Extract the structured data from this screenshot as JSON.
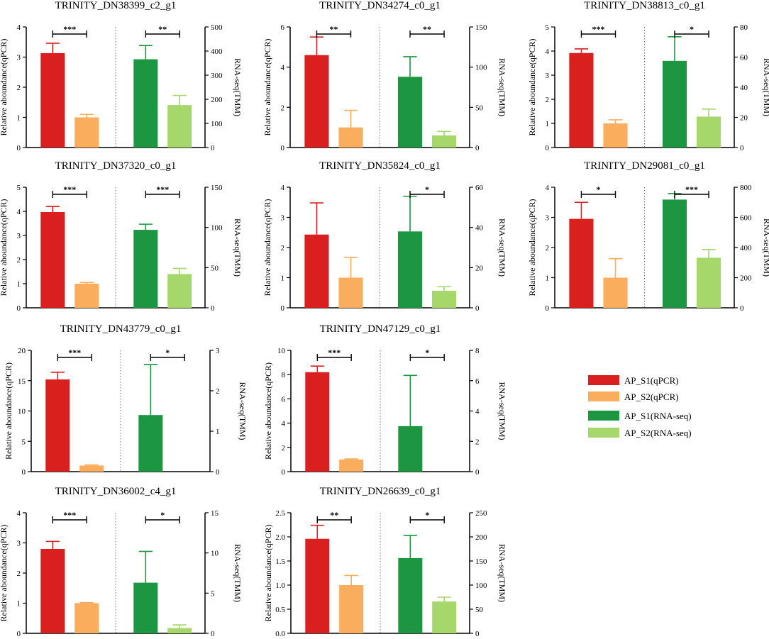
{
  "figure_title": "",
  "colors": {
    "AP_S1_qPCR": "#D9201F",
    "AP_S2_qPCR": "#FBAD5E",
    "AP_S1_RNAseq": "#1C9640",
    "AP_S2_RNAseq": "#A6D76A"
  },
  "legend": {
    "items": [
      {
        "label": "AP_S1(qPCR)",
        "color_key": "AP_S1_qPCR"
      },
      {
        "label": "AP_S2(qPCR)",
        "color_key": "AP_S2_qPCR"
      },
      {
        "label": "AP_S1(RNA-seq)",
        "color_key": "AP_S1_RNAseq"
      },
      {
        "label": "AP_S2(RNA-seq)",
        "color_key": "AP_S2_RNAseq"
      }
    ]
  },
  "chart_data": [
    {
      "type": "bar",
      "title": "TRINITY_DN38399_c2_g1",
      "ylabel_left": "Relative aboundance(qPCR)",
      "ylabel_right": "RNA-seq(TMM)",
      "categories": [
        "AP_S1(qPCR)",
        "AP_S2(qPCR)",
        "AP_S1(RNA-seq)",
        "AP_S2(RNA-seq)"
      ],
      "left_axis": {
        "ylim": [
          0,
          4
        ],
        "ticks": [
          "0",
          "1",
          "2",
          "3",
          "4"
        ]
      },
      "right_axis": {
        "ylim": [
          0,
          500
        ],
        "ticks": [
          "0",
          "100",
          "200",
          "300",
          "400",
          "500"
        ]
      },
      "qpcr": {
        "values": [
          3.13,
          1.0
        ],
        "errors": [
          0.33,
          0.1
        ],
        "significance": "***"
      },
      "rnaseq": {
        "values": [
          366,
          176
        ],
        "errors": [
          57,
          40
        ],
        "significance": "**"
      }
    },
    {
      "type": "bar",
      "title": "TRINITY_DN34274_c0_g1",
      "ylabel_left": "Relative aboundance(qPCR)",
      "ylabel_right": "RNA-seq(TMM)",
      "categories": [
        "AP_S1(qPCR)",
        "AP_S2(qPCR)",
        "AP_S1(RNA-seq)",
        "AP_S2(RNA-seq)"
      ],
      "left_axis": {
        "ylim": [
          0,
          6
        ],
        "ticks": [
          "0",
          "2",
          "4",
          "6"
        ]
      },
      "right_axis": {
        "ylim": [
          0,
          150
        ],
        "ticks": [
          "0",
          "50",
          "100",
          "150"
        ]
      },
      "qpcr": {
        "values": [
          4.6,
          1.0
        ],
        "errors": [
          0.9,
          0.85
        ],
        "significance": "**"
      },
      "rnaseq": {
        "values": [
          88,
          15
        ],
        "errors": [
          25,
          5
        ],
        "significance": "**"
      }
    },
    {
      "type": "bar",
      "title": "TRINITY_DN38813_c0_g1",
      "ylabel_left": "Relative aboundance(qPCR)",
      "ylabel_right": "RNA-seq(TMM)",
      "categories": [
        "AP_S1(qPCR)",
        "AP_S2(qPCR)",
        "AP_S1(RNA-seq)",
        "AP_S2(RNA-seq)"
      ],
      "left_axis": {
        "ylim": [
          0,
          5
        ],
        "ticks": [
          "0",
          "1",
          "2",
          "3",
          "4",
          "5"
        ]
      },
      "right_axis": {
        "ylim": [
          0,
          80
        ],
        "ticks": [
          "0",
          "20",
          "40",
          "60",
          "80"
        ]
      },
      "qpcr": {
        "values": [
          3.92,
          1.0
        ],
        "errors": [
          0.17,
          0.15
        ],
        "significance": "***"
      },
      "rnaseq": {
        "values": [
          57.5,
          20.5
        ],
        "errors": [
          16,
          5
        ],
        "significance": "*"
      }
    },
    {
      "type": "bar",
      "title": "TRINITY_DN37320_c0_g1",
      "ylabel_left": "Relative aboundance(qPCR)",
      "ylabel_right": "RNA-seq(TMM)",
      "categories": [
        "AP_S1(qPCR)",
        "AP_S2(qPCR)",
        "AP_S1(RNA-seq)",
        "AP_S2(RNA-seq)"
      ],
      "left_axis": {
        "ylim": [
          0,
          5
        ],
        "ticks": [
          "0",
          "1",
          "2",
          "3",
          "4",
          "5"
        ]
      },
      "right_axis": {
        "ylim": [
          0,
          150
        ],
        "ticks": [
          "0",
          "50",
          "100",
          "150"
        ]
      },
      "qpcr": {
        "values": [
          3.97,
          1.0
        ],
        "errors": [
          0.23,
          0.05
        ],
        "significance": "***"
      },
      "rnaseq": {
        "values": [
          97,
          42
        ],
        "errors": [
          7,
          7
        ],
        "significance": "***"
      }
    },
    {
      "type": "bar",
      "title": "TRINITY_DN35824_c0_g1",
      "ylabel_left": "Relative aboundance(qPCR)",
      "ylabel_right": "RNA-seq(TMM)",
      "categories": [
        "AP_S1(qPCR)",
        "AP_S2(qPCR)",
        "AP_S1(RNA-seq)",
        "AP_S2(RNA-seq)"
      ],
      "left_axis": {
        "ylim": [
          0,
          4
        ],
        "ticks": [
          "0",
          "1",
          "2",
          "3",
          "4"
        ]
      },
      "right_axis": {
        "ylim": [
          0,
          60
        ],
        "ticks": [
          "0",
          "20",
          "40",
          "60"
        ]
      },
      "qpcr": {
        "values": [
          2.43,
          1.0
        ],
        "errors": [
          1.05,
          0.67
        ],
        "significance": ""
      },
      "rnaseq": {
        "values": [
          38,
          8.5
        ],
        "errors": [
          17.5,
          2
        ],
        "significance": "*"
      }
    },
    {
      "type": "bar",
      "title": "TRINITY_DN29081_c0_g1",
      "ylabel_left": "Relative aboundance(qPCR)",
      "ylabel_right": "RNA-seq(TMM)",
      "categories": [
        "AP_S1(qPCR)",
        "AP_S2(qPCR)",
        "AP_S1(RNA-seq)",
        "AP_S2(RNA-seq)"
      ],
      "left_axis": {
        "ylim": [
          0,
          4
        ],
        "ticks": [
          "0",
          "1",
          "2",
          "3",
          "4"
        ]
      },
      "right_axis": {
        "ylim": [
          0,
          800
        ],
        "ticks": [
          "0",
          "200",
          "400",
          "600",
          "800"
        ]
      },
      "qpcr": {
        "values": [
          2.95,
          1.0
        ],
        "errors": [
          0.55,
          0.63
        ],
        "significance": "*"
      },
      "rnaseq": {
        "values": [
          718,
          332
        ],
        "errors": [
          40,
          55
        ],
        "significance": "***"
      }
    },
    {
      "type": "bar",
      "title": "TRINITY_DN43779_c0_g1",
      "ylabel_left": "Relative aboundance(qPCR)",
      "ylabel_right": "RNA-seq(TMM)",
      "categories": [
        "AP_S1(qPCR)",
        "AP_S2(qPCR)",
        "AP_S1(RNA-seq)",
        "AP_S2(RNA-seq)"
      ],
      "left_axis": {
        "ylim": [
          0,
          20
        ],
        "ticks": [
          "0",
          "5",
          "10",
          "15",
          "20"
        ]
      },
      "right_axis": {
        "ylim": [
          0,
          3
        ],
        "ticks": [
          "0",
          "1",
          "2",
          "3"
        ]
      },
      "qpcr": {
        "values": [
          15.2,
          1.0
        ],
        "errors": [
          1.2,
          0.1
        ],
        "significance": "***"
      },
      "rnaseq": {
        "values": [
          1.4,
          0.0
        ],
        "errors": [
          1.25,
          0
        ],
        "significance": "*"
      }
    },
    {
      "type": "bar",
      "title": "TRINITY_DN47129_c0_g1",
      "ylabel_left": "Relative aboundance(qPCR)",
      "ylabel_right": "RNA-seq(TMM)",
      "categories": [
        "AP_S1(qPCR)",
        "AP_S2(qPCR)",
        "AP_S1(RNA-seq)",
        "AP_S2(RNA-seq)"
      ],
      "left_axis": {
        "ylim": [
          0,
          10
        ],
        "ticks": [
          "0",
          "2",
          "4",
          "6",
          "8",
          "10"
        ]
      },
      "right_axis": {
        "ylim": [
          0,
          8
        ],
        "ticks": [
          "0",
          "2",
          "4",
          "6",
          "8"
        ]
      },
      "qpcr": {
        "values": [
          8.2,
          1.0
        ],
        "errors": [
          0.5,
          0.05
        ],
        "significance": "***"
      },
      "rnaseq": {
        "values": [
          3.0,
          0.0
        ],
        "errors": [
          3.35,
          0
        ],
        "significance": "*"
      }
    },
    {
      "type": "bar",
      "title": "TRINITY_DN36002_c4_g1",
      "ylabel_left": "Relative aboundance(qPCR)",
      "ylabel_right": "RNA-seq(TMM)",
      "categories": [
        "AP_S1(qPCR)",
        "AP_S2(qPCR)",
        "AP_S1(RNA-seq)",
        "AP_S2(RNA-seq)"
      ],
      "left_axis": {
        "ylim": [
          0,
          4
        ],
        "ticks": [
          "0",
          "1",
          "2",
          "3",
          "4"
        ]
      },
      "right_axis": {
        "ylim": [
          0,
          15
        ],
        "ticks": [
          "0",
          "5",
          "10",
          "15"
        ]
      },
      "qpcr": {
        "values": [
          2.8,
          1.0
        ],
        "errors": [
          0.25,
          0.02
        ],
        "significance": "***"
      },
      "rnaseq": {
        "values": [
          6.3,
          0.65
        ],
        "errors": [
          3.9,
          0.4
        ],
        "significance": "*"
      }
    },
    {
      "type": "bar",
      "title": "TRINITY_DN26639_c0_g1",
      "ylabel_left": "Relative aboundance(qPCR)",
      "ylabel_right": "RNA-seq(TMM)",
      "categories": [
        "AP_S1(qPCR)",
        "AP_S2(qPCR)",
        "AP_S1(RNA-seq)",
        "AP_S2(RNA-seq)"
      ],
      "left_axis": {
        "ylim": [
          0,
          2.5
        ],
        "ticks": [
          "0.0",
          "0.5",
          "1.0",
          "1.5",
          "2.0",
          "2.5"
        ]
      },
      "right_axis": {
        "ylim": [
          0,
          250
        ],
        "ticks": [
          "0",
          "50",
          "100",
          "150",
          "200",
          "250"
        ]
      },
      "qpcr": {
        "values": [
          1.96,
          1.0
        ],
        "errors": [
          0.28,
          0.2
        ],
        "significance": "**"
      },
      "rnaseq": {
        "values": [
          156,
          66
        ],
        "errors": [
          47,
          9
        ],
        "significance": "*"
      }
    }
  ]
}
